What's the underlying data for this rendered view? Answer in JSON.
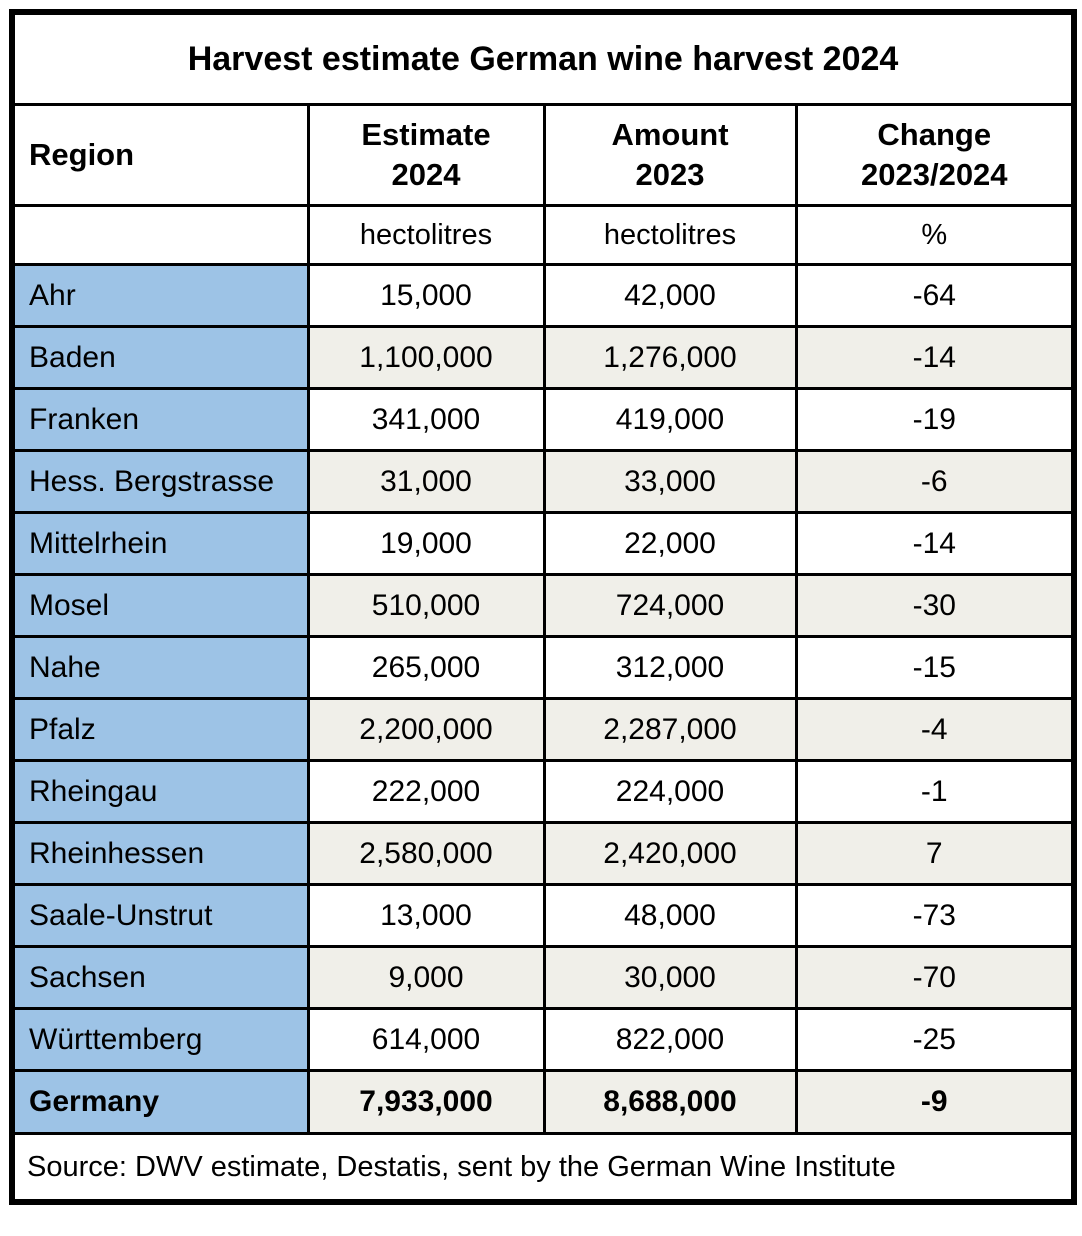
{
  "title": "Harvest estimate German wine harvest 2024",
  "columns": {
    "region": "Region",
    "estimate": "Estimate\n2024",
    "amount": "Amount\n2023",
    "change": "Change\n2023/2024"
  },
  "units": {
    "region": "",
    "estimate": "hectolitres",
    "amount": "hectolitres",
    "change": "%"
  },
  "rows": [
    {
      "region": "Ahr",
      "estimate": "15,000",
      "amount": "42,000",
      "change": "-64"
    },
    {
      "region": "Baden",
      "estimate": "1,100,000",
      "amount": "1,276,000",
      "change": "-14"
    },
    {
      "region": "Franken",
      "estimate": "341,000",
      "amount": "419,000",
      "change": "-19"
    },
    {
      "region": "Hess. Bergstrasse",
      "estimate": "31,000",
      "amount": "33,000",
      "change": "-6"
    },
    {
      "region": "Mittelrhein",
      "estimate": "19,000",
      "amount": "22,000",
      "change": "-14"
    },
    {
      "region": "Mosel",
      "estimate": "510,000",
      "amount": "724,000",
      "change": "-30"
    },
    {
      "region": "Nahe",
      "estimate": "265,000",
      "amount": "312,000",
      "change": "-15"
    },
    {
      "region": "Pfalz",
      "estimate": "2,200,000",
      "amount": "2,287,000",
      "change": "-4"
    },
    {
      "region": "Rheingau",
      "estimate": "222,000",
      "amount": "224,000",
      "change": "-1"
    },
    {
      "region": "Rheinhessen",
      "estimate": "2,580,000",
      "amount": "2,420,000",
      "change": "7"
    },
    {
      "region": "Saale-Unstrut",
      "estimate": "13,000",
      "amount": "48,000",
      "change": "-73"
    },
    {
      "region": "Sachsen",
      "estimate": "9,000",
      "amount": "30,000",
      "change": "-70"
    },
    {
      "region": "Württemberg",
      "estimate": "614,000",
      "amount": "822,000",
      "change": "-25"
    }
  ],
  "total": {
    "region": "Germany",
    "estimate": "7,933,000",
    "amount": "8,688,000",
    "change": "-9"
  },
  "source": "Source: DWV estimate, Destatis, sent by the German Wine Institute",
  "colors": {
    "region_column_blue": "#9DC3E6",
    "alternate_row_gray": "#F0EFE9",
    "border_black": "#000000",
    "background_white": "#FFFFFF"
  },
  "chart_data": {
    "type": "table",
    "title": "Harvest estimate German wine harvest 2024",
    "columns": [
      "Region",
      "Estimate 2024 (hectolitres)",
      "Amount 2023 (hectolitres)",
      "Change 2023/2024 (%)"
    ],
    "categories": [
      "Ahr",
      "Baden",
      "Franken",
      "Hess. Bergstrasse",
      "Mittelrhein",
      "Mosel",
      "Nahe",
      "Pfalz",
      "Rheingau",
      "Rheinhessen",
      "Saale-Unstrut",
      "Sachsen",
      "Württemberg",
      "Germany"
    ],
    "series": [
      {
        "name": "Estimate 2024 (hectolitres)",
        "values": [
          15000,
          1100000,
          341000,
          31000,
          19000,
          510000,
          265000,
          2200000,
          222000,
          2580000,
          13000,
          9000,
          614000,
          7933000
        ]
      },
      {
        "name": "Amount 2023 (hectolitres)",
        "values": [
          42000,
          1276000,
          419000,
          33000,
          22000,
          724000,
          312000,
          2287000,
          224000,
          2420000,
          48000,
          30000,
          822000,
          8688000
        ]
      },
      {
        "name": "Change 2023/2024 (%)",
        "values": [
          -64,
          -14,
          -19,
          -6,
          -14,
          -30,
          -15,
          -4,
          -1,
          7,
          -73,
          -70,
          -25,
          -9
        ]
      }
    ],
    "source": "Source: DWV estimate, Destatis, sent by the German Wine Institute"
  }
}
